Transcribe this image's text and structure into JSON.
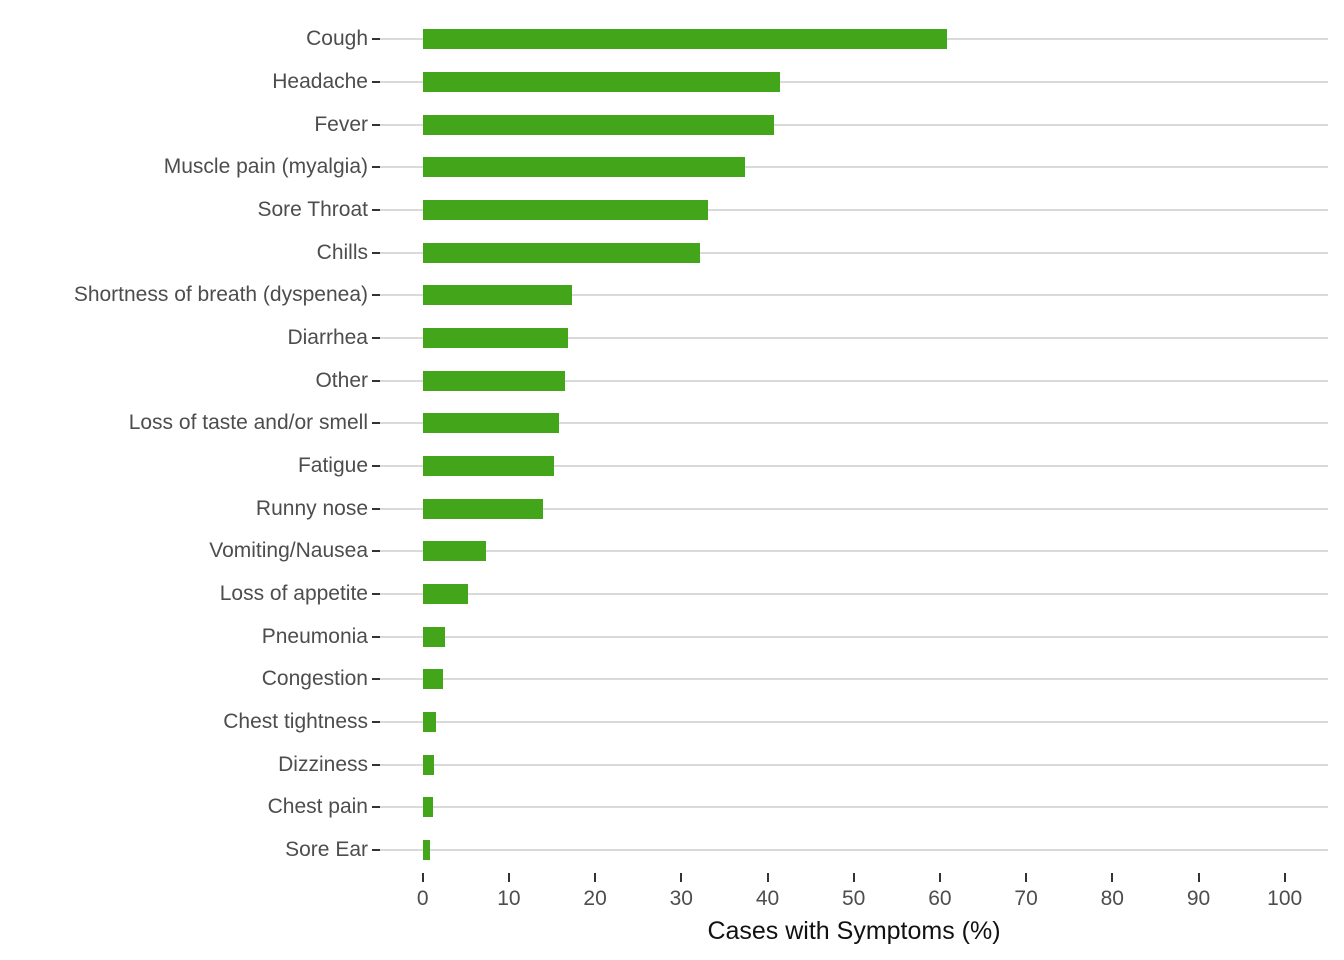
{
  "chart_data": {
    "type": "bar",
    "orientation": "horizontal",
    "title": "",
    "xlabel": "Cases with Symptoms (%)",
    "ylabel": "",
    "categories": [
      "Cough",
      "Headache",
      "Fever",
      "Muscle pain (myalgia)",
      "Sore Throat",
      "Chills",
      "Shortness of breath (dyspenea)",
      "Diarrhea",
      "Other",
      "Loss of taste and/or smell",
      "Fatigue",
      "Runny nose",
      "Vomiting/Nausea",
      "Loss of appetite",
      "Pneumonia",
      "Congestion",
      "Chest tightness",
      "Dizziness",
      "Chest pain",
      "Sore Ear"
    ],
    "values": [
      60.8,
      41.5,
      40.8,
      37.4,
      33.1,
      32.2,
      17.3,
      16.9,
      16.5,
      15.8,
      15.2,
      13.9,
      7.3,
      5.2,
      2.6,
      2.3,
      1.6,
      1.3,
      1.2,
      0.8
    ],
    "xlim": [
      0,
      100
    ],
    "x_ticks": [
      0,
      10,
      20,
      30,
      40,
      50,
      60,
      70,
      80,
      90,
      100
    ],
    "grid": "horizontal-major-only",
    "legend": "none",
    "colors": {
      "bar": "#43A61A",
      "gridline": "#D9D9D9",
      "tick_mark": "#333333",
      "axis_text": "#4D4D4D",
      "axis_title": "#111111",
      "background": "#FFFFFF"
    }
  }
}
